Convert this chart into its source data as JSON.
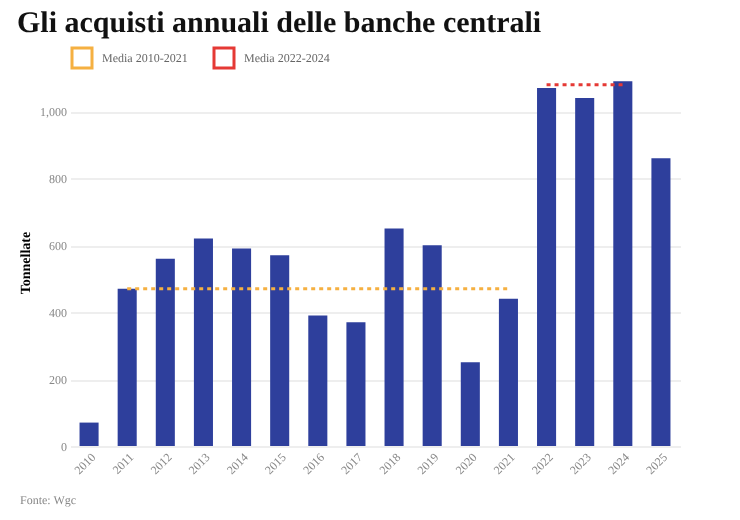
{
  "chart_data": {
    "type": "bar",
    "title": "Gli acquisti annuali delle banche centrali",
    "ylabel": "Tonnellate",
    "categories": [
      "2010",
      "2011",
      "2012",
      "2013",
      "2014",
      "2015",
      "2016",
      "2017",
      "2018",
      "2019",
      "2020",
      "2021",
      "2022",
      "2023",
      "2024",
      "2025"
    ],
    "series": [
      {
        "color": "#2e3f9c",
        "values": [
          70,
          470,
          560,
          620,
          590,
          570,
          390,
          370,
          650,
          600,
          250,
          440,
          1070,
          1040,
          1090,
          860
        ]
      },
      {
        "type": "line",
        "name": "Media 2010-2021",
        "color": "#f5b041",
        "line_style": "dotted",
        "values": [
          null,
          470,
          470,
          470,
          470,
          470,
          470,
          470,
          470,
          470,
          470,
          470,
          null,
          null,
          null,
          null
        ]
      },
      {
        "type": "line",
        "name": "Media 2022-2024",
        "color": "#e53935",
        "line_style": "dotted",
        "values": [
          null,
          null,
          null,
          null,
          null,
          null,
          null,
          null,
          null,
          null,
          null,
          null,
          1080,
          1080,
          1080,
          null
        ]
      }
    ],
    "ylim": [
      0,
      1100
    ],
    "yticks": [
      0,
      200,
      400,
      600,
      800,
      {
        "value": 1000,
        "label": "1,000"
      }
    ],
    "grid": "y",
    "legend": "top left",
    "annotations": [
      "Fonte: Wgc"
    ]
  }
}
